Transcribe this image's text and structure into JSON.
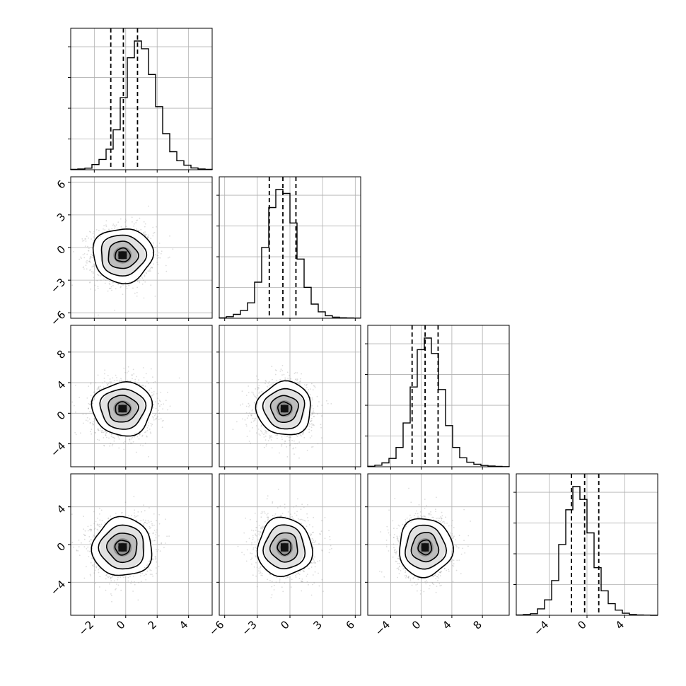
{
  "chart_data": {
    "type": "corner",
    "n_params": 4,
    "grid": true,
    "colors": {
      "ink": "#000000",
      "grid": "#b0b0b0",
      "scatter": "#9a9a9a"
    },
    "params": [
      {
        "range": [
          -3.5,
          5.5
        ],
        "ticks": [
          -2,
          0,
          2,
          4
        ],
        "tick_labels": [
          "−2",
          "0",
          "2",
          "4"
        ],
        "quantiles": [
          -0.95,
          -0.15,
          0.75
        ],
        "peak": 0.42,
        "hist": [
          0.003,
          0.006,
          0.012,
          0.04,
          0.08,
          0.16,
          0.31,
          0.56,
          0.87,
          1.0,
          0.94,
          0.74,
          0.49,
          0.28,
          0.14,
          0.07,
          0.035,
          0.014,
          0.006,
          0.003
        ]
      },
      {
        "range": [
          -6.5,
          6.5
        ],
        "ticks": [
          -6,
          -3,
          0,
          3,
          6
        ],
        "tick_labels": [
          "−6",
          "−3",
          "0",
          "3",
          "6"
        ],
        "quantiles": [
          -1.9,
          -0.65,
          0.55
        ],
        "peak": 0.33,
        "hist": [
          0.003,
          0.012,
          0.03,
          0.06,
          0.12,
          0.28,
          0.55,
          0.86,
          1.0,
          0.97,
          0.74,
          0.46,
          0.24,
          0.11,
          0.05,
          0.02,
          0.008,
          0.004,
          0.002,
          0.001
        ]
      },
      {
        "range": [
          -7.0,
          11.5
        ],
        "ticks": [
          -4,
          0,
          4,
          8
        ],
        "tick_labels": [
          "−4",
          "0",
          "4",
          "8"
        ],
        "quantiles": [
          -1.2,
          0.5,
          2.2
        ],
        "peak": 0.22,
        "hist": [
          0.004,
          0.012,
          0.03,
          0.065,
          0.15,
          0.34,
          0.62,
          0.91,
          1.0,
          0.88,
          0.6,
          0.32,
          0.15,
          0.07,
          0.035,
          0.02,
          0.01,
          0.006,
          0.003,
          0.001
        ]
      },
      {
        "range": [
          -7.5,
          7.5
        ],
        "ticks": [
          -4,
          0,
          4
        ],
        "tick_labels": [
          "−4",
          "0",
          "4"
        ],
        "quantiles": [
          -1.65,
          -0.25,
          1.25
        ],
        "peak": 0.26,
        "hist": [
          0.002,
          0.006,
          0.012,
          0.05,
          0.12,
          0.27,
          0.55,
          0.82,
          1.0,
          0.9,
          0.64,
          0.37,
          0.19,
          0.09,
          0.04,
          0.016,
          0.006,
          0.002,
          0.001,
          0.0
        ]
      }
    ],
    "pairs": [
      {
        "row": 1,
        "col": 0,
        "center": [
          -0.2,
          -0.7
        ],
        "sd": [
          0.95,
          1.25
        ],
        "ylim": [
          -6.5,
          6.5
        ],
        "yticks": [
          -6,
          -3,
          0,
          3,
          6
        ],
        "ytick_labels": [
          "−6",
          "−3",
          "0",
          "3",
          "6"
        ]
      },
      {
        "row": 2,
        "col": 0,
        "center": [
          -0.2,
          0.6
        ],
        "sd": [
          0.95,
          1.75
        ],
        "ylim": [
          -7.0,
          11.5
        ],
        "yticks": [
          -4,
          0,
          4,
          8
        ],
        "ytick_labels": [
          "−4",
          "0",
          "4",
          "8"
        ]
      },
      {
        "row": 2,
        "col": 1,
        "center": [
          -0.5,
          0.6
        ],
        "sd": [
          1.25,
          1.75
        ],
        "ylim": [
          -7.0,
          11.5
        ]
      },
      {
        "row": 3,
        "col": 0,
        "center": [
          -0.2,
          -0.3
        ],
        "sd": [
          0.95,
          1.55
        ],
        "ylim": [
          -7.5,
          7.5
        ],
        "yticks": [
          -4,
          0,
          4
        ],
        "ytick_labels": [
          "−4",
          "0",
          "4"
        ]
      },
      {
        "row": 3,
        "col": 1,
        "center": [
          -0.5,
          -0.3
        ],
        "sd": [
          1.25,
          1.55
        ],
        "ylim": [
          -7.5,
          7.5
        ]
      },
      {
        "row": 3,
        "col": 2,
        "center": [
          0.5,
          -0.3
        ],
        "sd": [
          1.75,
          1.55
        ],
        "ylim": [
          -7.5,
          7.5
        ]
      }
    ],
    "contour_levels_sigma": [
      0.5,
      1.0,
      1.5,
      2.0
    ]
  }
}
